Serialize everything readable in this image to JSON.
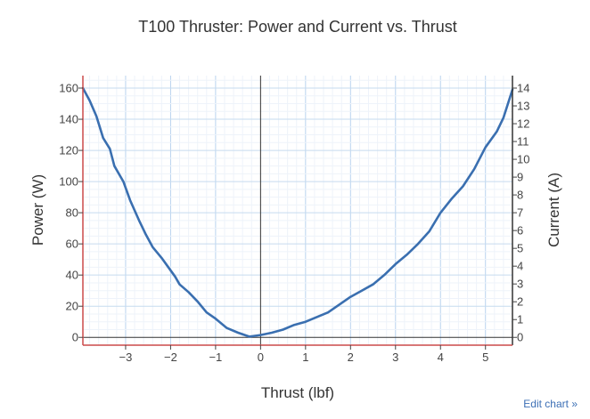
{
  "chart_data": {
    "type": "line",
    "title": "T100 Thruster: Power and Current vs. Thrust",
    "xlabel": "Thrust (lbf)",
    "ylabel": "Power (W)",
    "y2label": "Current (A)",
    "xlim": [
      -3.95,
      5.6
    ],
    "ylim": [
      -5,
      168
    ],
    "y2lim": [
      -0.4375,
      14.7
    ],
    "x_ticks": [
      -3,
      -2,
      -1,
      0,
      1,
      2,
      3,
      4,
      5
    ],
    "x_tick_labels": [
      "−3",
      "−2",
      "−1",
      "0",
      "1",
      "2",
      "3",
      "4",
      "5"
    ],
    "y_ticks": [
      0,
      20,
      40,
      60,
      80,
      100,
      120,
      140,
      160
    ],
    "y_tick_labels": [
      "0",
      "20",
      "40",
      "60",
      "80",
      "100",
      "120",
      "140",
      "160"
    ],
    "y2_ticks": [
      0,
      1,
      2,
      3,
      4,
      5,
      6,
      7,
      8,
      9,
      10,
      11,
      12,
      13,
      14
    ],
    "y2_tick_labels": [
      "0",
      "1",
      "2",
      "3",
      "4",
      "5",
      "6",
      "7",
      "8",
      "9",
      "10",
      "11",
      "12",
      "13",
      "14"
    ],
    "grid": true,
    "series": [
      {
        "name": "",
        "color": "#3a6fb0",
        "points": [
          [
            -3.95,
            160
          ],
          [
            -3.8,
            152
          ],
          [
            -3.65,
            142
          ],
          [
            -3.5,
            128
          ],
          [
            -3.35,
            121
          ],
          [
            -3.25,
            110
          ],
          [
            -3.05,
            100
          ],
          [
            -2.9,
            88
          ],
          [
            -2.7,
            75
          ],
          [
            -2.55,
            66
          ],
          [
            -2.4,
            58
          ],
          [
            -2.2,
            51
          ],
          [
            -2.05,
            45
          ],
          [
            -1.9,
            39
          ],
          [
            -1.8,
            34
          ],
          [
            -1.6,
            29
          ],
          [
            -1.4,
            23
          ],
          [
            -1.2,
            16
          ],
          [
            -1.0,
            12
          ],
          [
            -0.75,
            6
          ],
          [
            -0.5,
            3
          ],
          [
            -0.25,
            0.5
          ],
          [
            0.0,
            1.5
          ],
          [
            0.25,
            3
          ],
          [
            0.5,
            5
          ],
          [
            0.75,
            8
          ],
          [
            1.0,
            10
          ],
          [
            1.25,
            13
          ],
          [
            1.5,
            16
          ],
          [
            1.75,
            21
          ],
          [
            2.0,
            26
          ],
          [
            2.25,
            30
          ],
          [
            2.5,
            34
          ],
          [
            2.75,
            40
          ],
          [
            3.0,
            47
          ],
          [
            3.25,
            53
          ],
          [
            3.5,
            60
          ],
          [
            3.75,
            68
          ],
          [
            4.0,
            80
          ],
          [
            4.25,
            89
          ],
          [
            4.5,
            97
          ],
          [
            4.75,
            108
          ],
          [
            5.0,
            122
          ],
          [
            5.25,
            132
          ],
          [
            5.4,
            141
          ],
          [
            5.5,
            150
          ],
          [
            5.6,
            159
          ]
        ]
      }
    ]
  },
  "ui": {
    "edit_link": "Edit chart »"
  }
}
